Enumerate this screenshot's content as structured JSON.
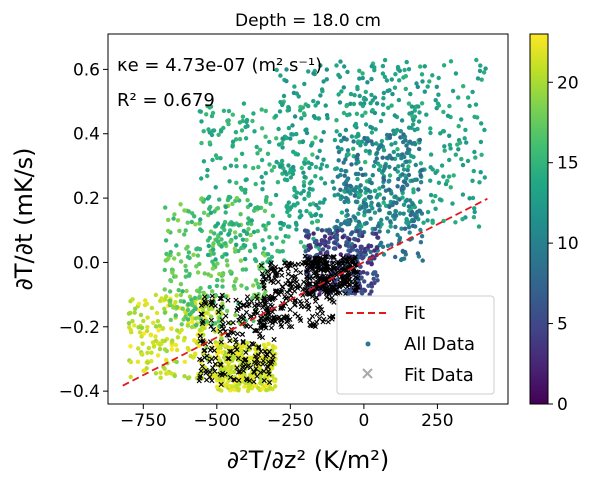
{
  "chart_data": {
    "type": "scatter",
    "title": "Depth = 18.0 cm",
    "xlabel": "∂²T/∂z² (K/m²)",
    "ylabel": "∂T/∂t (mK/s)",
    "xlim": [
      -870,
      490
    ],
    "ylim": [
      -0.44,
      0.71
    ],
    "x_ticks": [
      -750,
      -500,
      -250,
      0,
      250
    ],
    "x_tick_labels": [
      "−750",
      "−500",
      "−250",
      "0",
      "250"
    ],
    "y_ticks": [
      -0.4,
      -0.2,
      0.0,
      0.2,
      0.4,
      0.6
    ],
    "y_tick_labels": [
      "−0.4",
      "−0.2",
      "0.0",
      "0.2",
      "0.4",
      "0.6"
    ],
    "grid": false,
    "annotations": {
      "kappa": "κe = 4.73e-07 (m² s⁻¹)",
      "r2": "R² = 0.679"
    },
    "legend": {
      "placement": "lower-right",
      "entries": [
        "Fit",
        "All Data",
        "Fit Data"
      ]
    },
    "series": [
      {
        "name": "Fit",
        "kind": "dashed-line",
        "color": "#e31a1c",
        "x": [
          -820,
          420
        ],
        "y": [
          -0.383,
          0.198
        ]
      },
      {
        "name": "All Data",
        "kind": "scatter",
        "colormap": "viridis",
        "clusters": [
          {
            "x": [
              -800,
              -450
            ],
            "y": [
              -0.36,
              -0.1
            ],
            "c": [
              19,
              23
            ]
          },
          {
            "x": [
              -680,
              -330
            ],
            "y": [
              -0.2,
              0.2
            ],
            "c": [
              15,
              19
            ]
          },
          {
            "x": [
              -560,
              -150
            ],
            "y": [
              0.0,
              0.5
            ],
            "c": [
              13,
              16
            ]
          },
          {
            "x": [
              -300,
              200
            ],
            "y": [
              0.1,
              0.63
            ],
            "c": [
              11,
              14
            ]
          },
          {
            "x": [
              -100,
              420
            ],
            "y": [
              0.1,
              0.63
            ],
            "c": [
              12,
              15
            ]
          },
          {
            "x": [
              -100,
              200
            ],
            "y": [
              0.0,
              0.4
            ],
            "c": [
              7,
              11
            ]
          },
          {
            "x": [
              -200,
              50
            ],
            "y": [
              -0.1,
              0.1
            ],
            "c": [
              2,
              7
            ]
          },
          {
            "x": [
              -500,
              -300
            ],
            "y": [
              -0.4,
              -0.25
            ],
            "c": [
              20,
              23
            ]
          }
        ]
      },
      {
        "name": "Fit Data",
        "kind": "scatter-x",
        "color": "#000000",
        "clusters": [
          {
            "x": [
              -560,
              -300
            ],
            "y": [
              -0.38,
              -0.1
            ]
          },
          {
            "x": [
              -350,
              -100
            ],
            "y": [
              -0.2,
              0.0
            ]
          },
          {
            "x": [
              -200,
              -20
            ],
            "y": [
              -0.1,
              0.02
            ]
          }
        ]
      }
    ],
    "colorbar": {
      "min": 0,
      "max": 23,
      "ticks": [
        0,
        5,
        10,
        15,
        20
      ],
      "tick_labels": [
        "0",
        "5",
        "10",
        "15",
        "20"
      ],
      "colormap": "viridis"
    },
    "colors": {
      "fit_line": "#e31a1c",
      "fit_data": "#000000"
    }
  }
}
